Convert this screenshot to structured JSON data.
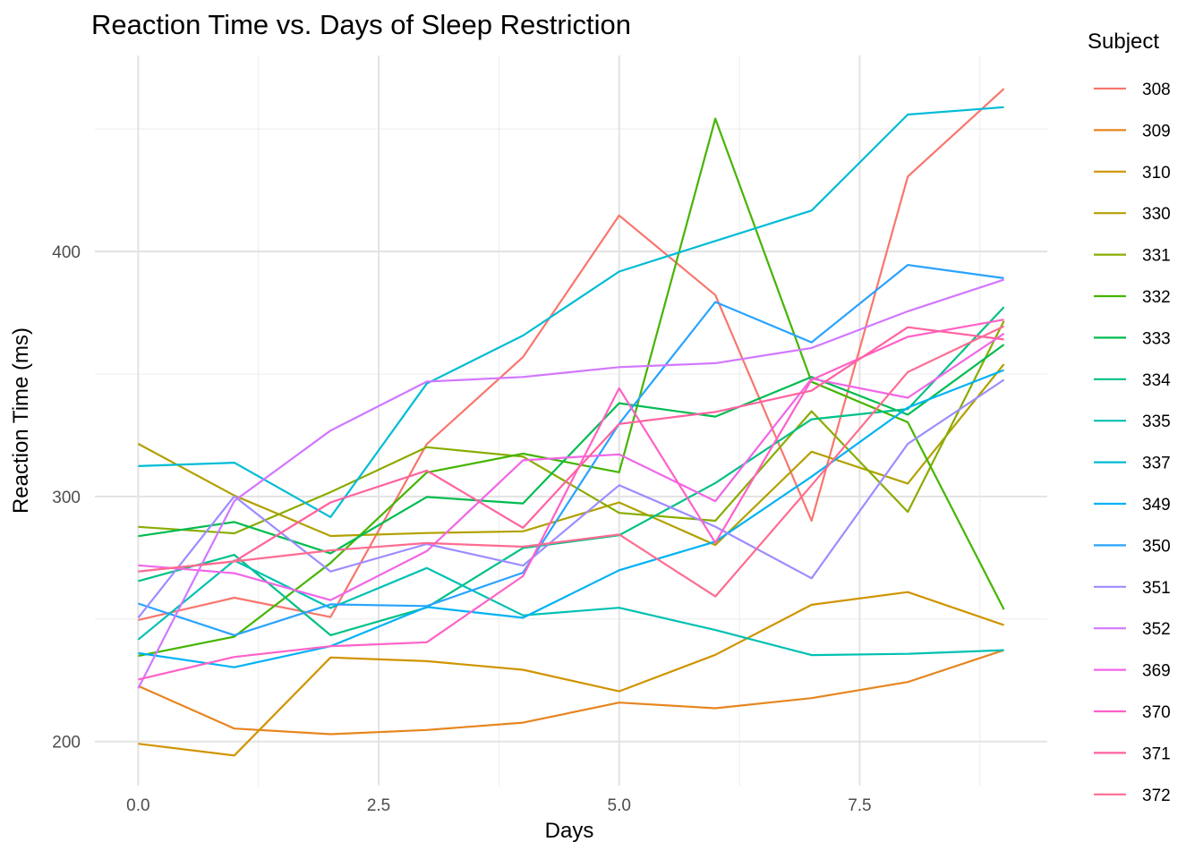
{
  "chart_data": {
    "type": "line",
    "title": "Reaction Time vs. Days of Sleep Restriction",
    "xlabel": "Days",
    "ylabel": "Reaction Time (ms)",
    "legend_title": "Subject",
    "legend_position": "right",
    "grid": true,
    "xlim": [
      -0.45,
      9.45
    ],
    "ylim": [
      182,
      480
    ],
    "x_ticks": [
      0.0,
      2.5,
      5.0,
      7.5
    ],
    "x_tick_labels": [
      "0.0",
      "2.5",
      "5.0",
      "7.5"
    ],
    "y_ticks": [
      200,
      300,
      400
    ],
    "y_tick_labels": [
      "200",
      "300",
      "400"
    ],
    "x": [
      0,
      1,
      2,
      3,
      4,
      5,
      6,
      7,
      8,
      9
    ],
    "series": [
      {
        "name": "308",
        "color": "#F8766D",
        "values": [
          249.6,
          258.7,
          250.8,
          321.4,
          356.9,
          414.7,
          382.2,
          290.1,
          430.6,
          466.4
        ]
      },
      {
        "name": "309",
        "color": "#E7851E",
        "values": [
          222.7,
          205.3,
          203.0,
          204.7,
          207.7,
          215.9,
          213.6,
          217.7,
          224.3,
          237.3
        ]
      },
      {
        "name": "310",
        "color": "#D09400",
        "values": [
          199.1,
          194.3,
          234.3,
          232.8,
          229.3,
          220.5,
          235.4,
          255.8,
          261.0,
          247.5
        ]
      },
      {
        "name": "330",
        "color": "#B2A100",
        "values": [
          321.5,
          300.4,
          283.9,
          285.1,
          285.8,
          297.6,
          280.2,
          318.3,
          305.3,
          354.0
        ]
      },
      {
        "name": "331",
        "color": "#89AC00",
        "values": [
          287.6,
          285.0,
          301.8,
          320.1,
          316.3,
          293.3,
          290.1,
          334.8,
          293.7,
          371.6
        ]
      },
      {
        "name": "332",
        "color": "#45B500",
        "values": [
          234.9,
          242.8,
          272.9,
          309.8,
          317.5,
          309.9,
          454.2,
          346.8,
          330.3,
          253.9
        ]
      },
      {
        "name": "333",
        "color": "#00BC51",
        "values": [
          283.8,
          289.6,
          276.8,
          299.8,
          297.2,
          338.1,
          332.6,
          348.8,
          333.4,
          362.0
        ]
      },
      {
        "name": "334",
        "color": "#00C087",
        "values": [
          265.5,
          276.2,
          243.4,
          254.7,
          279.0,
          284.2,
          305.5,
          331.5,
          335.7,
          377.3
        ]
      },
      {
        "name": "335",
        "color": "#00C1B2",
        "values": [
          241.6,
          273.9,
          254.5,
          270.8,
          251.5,
          254.6,
          245.5,
          235.3,
          235.8,
          237.3
        ]
      },
      {
        "name": "337",
        "color": "#00BCD6",
        "values": [
          312.4,
          313.8,
          291.6,
          346.1,
          365.7,
          391.8,
          404.3,
          416.7,
          455.9,
          458.9
        ]
      },
      {
        "name": "349",
        "color": "#00B2F3",
        "values": [
          236.1,
          230.3,
          238.9,
          254.9,
          250.5,
          269.9,
          281.6,
          308.1,
          336.3,
          351.6
        ]
      },
      {
        "name": "350",
        "color": "#29A3FF",
        "values": [
          256.3,
          243.4,
          256.0,
          255.3,
          268.9,
          329.7,
          379.4,
          362.9,
          394.5,
          389.1
        ]
      },
      {
        "name": "351",
        "color": "#9C8DFF",
        "values": [
          250.5,
          300.1,
          269.4,
          280.6,
          271.8,
          304.6,
          287.7,
          266.6,
          321.5,
          347.6
        ],
        "color_note": "blue-purple"
      },
      {
        "name": "352",
        "color": "#D277FF",
        "values": [
          221.7,
          298.2,
          326.9,
          346.9,
          348.8,
          352.8,
          354.4,
          360.6,
          375.6,
          388.5
        ]
      },
      {
        "name": "369",
        "color": "#F166E8",
        "values": [
          271.9,
          268.7,
          257.7,
          277.7,
          314.8,
          317.2,
          298.1,
          348.1,
          340.3,
          366.5
        ]
      },
      {
        "name": "370",
        "color": "#FF61C7",
        "values": [
          225.3,
          234.5,
          238.9,
          240.5,
          267.5,
          344.2,
          281.1,
          347.6,
          365.2,
          372.2
        ]
      },
      {
        "name": "371",
        "color": "#FF62A0",
        "values": [
          269.4,
          273.5,
          297.6,
          310.6,
          287.2,
          329.6,
          334.5,
          343.2,
          369.1,
          364.1
        ]
      },
      {
        "name": "372",
        "color": "#FF6C91",
        "values": [
          269.4,
          273.5,
          278.0,
          281.0,
          279.5,
          284.5,
          259.2,
          304.6,
          350.8,
          369.5
        ]
      }
    ]
  }
}
